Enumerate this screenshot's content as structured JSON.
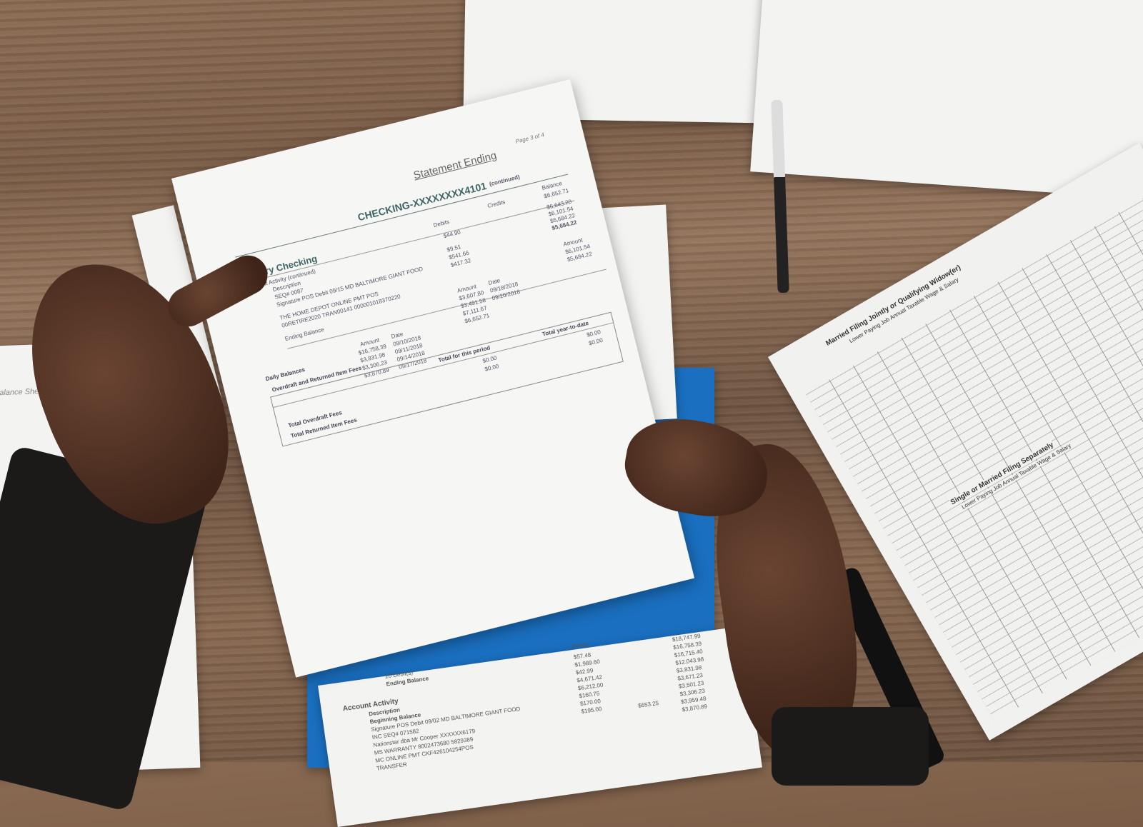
{
  "statement": {
    "title": "Statement Ending",
    "page": "Page 3 of 4",
    "account": "CHECKING-XXXXXXXX4101",
    "continued": "(continued)",
    "section": "Primary Checking",
    "activity": "Account Activity (continued)",
    "headers": {
      "description": "Description",
      "debits": "Debits",
      "credits": "Credits",
      "balance": "Balance"
    },
    "rows": [
      {
        "description": "SEQ# 0087",
        "debit": "",
        "balance": "$6,652.71"
      },
      {
        "description": "Signature POS Debit 09/15 MD BALTIMORE GIANT FOOD",
        "debit": "$44.90",
        "balance": "$6,643.20"
      },
      {
        "description": "THE HOME DEPOT ONLINE PMT POS",
        "debit": "$9.51",
        "balance": "$6,101.54"
      },
      {
        "description": "00RETIRE2020 TRAN00141 000001018370220",
        "debit": "$541.66",
        "balance": "$5,684.22"
      },
      {
        "description": "Ending Balance",
        "debit": "$417.32",
        "balance": "$5,684.22"
      }
    ],
    "daily_balances_label": "Daily Balances",
    "daily_headers": {
      "amount": "Amount",
      "date": "Date"
    },
    "daily": [
      {
        "amount": "$16,758.39",
        "date": "09/10/2018"
      },
      {
        "amount": "$3,831.98",
        "date": "09/11/2018"
      },
      {
        "amount": "$3,306.23",
        "date": "09/14/2018"
      },
      {
        "amount": "$3,870.89",
        "date": "09/17/2018"
      },
      {
        "amount": "$3,607.80",
        "date": "09/18/2018"
      },
      {
        "amount": "$3,491.58",
        "date": "09/20/2018"
      },
      {
        "amount": "$7,111.67",
        "date": ""
      },
      {
        "amount": "$6,652.71",
        "date": ""
      },
      {
        "amount": "$6,101.54",
        "date": ""
      },
      {
        "amount": "$5,684.22",
        "date": ""
      }
    ],
    "fees": {
      "title": "Overdraft and Returned Item Fees",
      "period": "Total for this period",
      "ytd": "Total year-to-date",
      "rows": [
        {
          "label": "Total Overdraft Fees",
          "period": "$0.00",
          "ytd": "$0.00"
        },
        {
          "label": "Total Returned Item Fees",
          "period": "$0.00",
          "ytd": "$0.00"
        }
      ]
    }
  },
  "lower_statement": {
    "activity": "Account Activity",
    "description": "Description",
    "debits": "Debits",
    "ending": "Ending Balance",
    "debits_count": "20 Debit(s)",
    "rows": [
      "Beginning Balance",
      "Signature POS Debit 09/02 MD BALTIMORE GIANT FOOD",
      "INC SEQ# 071582",
      "Nationstar dba Mr Cooper XXXXXX6179",
      "MS WARRANTY 8002473680 5829389",
      "MC ONLINE PMT CKF426104254POS",
      "TRANSFER"
    ],
    "debit_values": "$57.48\n$1,989.60\n$42.99\n$4,671.42\n$6,212.00\n$160.75\n$170.00\n$195.00",
    "balance_values": "$18,747.99\n$16,758.39\n$16,715.40\n$12,043.98\n$3,831.98\n$3,671.23\n$3,501.23\n$3,306.23\n$3,959.48\n$3,870.89",
    "credit": "$653.25"
  },
  "tax_table": {
    "title1": "Married Filing Jointly or Qualifying Widow(er)",
    "sub1": "Lower Paying Job Annual Taxable Wage & Salary",
    "title2": "Single or Married Filing Separately",
    "sub2": "Lower Paying Job Annual Taxable Wage & Salary"
  },
  "balance_sheet": "Balance Sheet"
}
